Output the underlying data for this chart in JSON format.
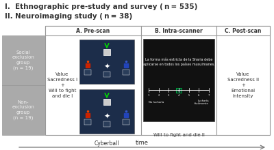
{
  "section_a": "A. Pre-scan",
  "section_b": "B. Intra-scanner",
  "section_c": "C. Post-scan",
  "group1_label": "Social\nexclusion\ngroup\n(n = 19)",
  "group2_label": "Non-\nexclusion\ngroup\n(n = 19)",
  "prescan_text": "Value\nSacredness I\n+\nWill to fight\nand die I",
  "cyberball_label": "Cyberball",
  "intra_text": "Will to fight and die II",
  "postscan_text": "Value\nSacredness II\n+\nEmotional\nintensity",
  "time_label": "time",
  "bg_color": "#ffffff",
  "group_bg": "#aaaaaa",
  "border_color": "#999999",
  "dark_screen": "#111111",
  "arrow_color": "#777777",
  "text_color_dark": "#333333",
  "text_color_light": "#f0f0f0",
  "spanish_text": "La forma más estricta de la Sharia debe\naplicarse en todos los países musulmanes.",
  "title1_roman": "I.",
  "title1_text": "Ethnographic pre-study and survey ( n = 535)",
  "title2_roman": "II.",
  "title2_text": "Neuroimaging study ( n = 38)"
}
